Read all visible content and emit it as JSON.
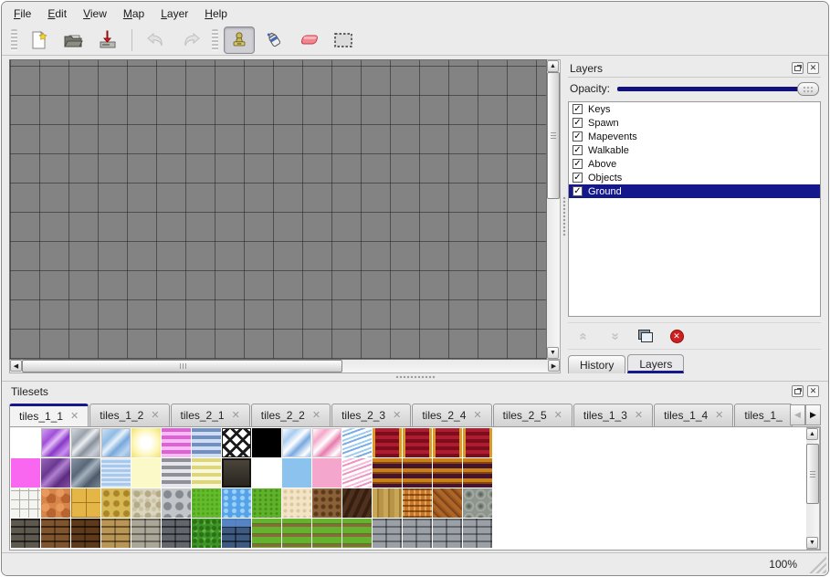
{
  "menubar": {
    "items": [
      "File",
      "Edit",
      "View",
      "Map",
      "Layer",
      "Help"
    ]
  },
  "toolbar": {
    "groups": [
      {
        "leading": "handle",
        "tools": [
          {
            "name": "new-map",
            "icon": "new-file-icon"
          },
          {
            "name": "open-map",
            "icon": "open-folder-icon"
          },
          {
            "name": "save-map",
            "icon": "save-icon"
          }
        ]
      },
      {
        "leading": "separator",
        "tools": [
          {
            "name": "undo",
            "icon": "undo-icon",
            "disabled": true
          },
          {
            "name": "redo",
            "icon": "redo-icon",
            "disabled": true
          }
        ]
      },
      {
        "leading": "handle",
        "tools": [
          {
            "name": "stamp-tool",
            "icon": "stamp-icon",
            "active": true
          },
          {
            "name": "fill-tool",
            "icon": "fill-icon"
          },
          {
            "name": "eraser-tool",
            "icon": "eraser-icon"
          },
          {
            "name": "selection-tool",
            "icon": "select-icon"
          }
        ]
      }
    ]
  },
  "layers_panel": {
    "title": "Layers",
    "opacity_label": "Opacity:",
    "opacity_percent": 100,
    "layers": [
      {
        "name": "Keys",
        "checked": true,
        "selected": false
      },
      {
        "name": "Spawn",
        "checked": true,
        "selected": false
      },
      {
        "name": "Mapevents",
        "checked": true,
        "selected": false
      },
      {
        "name": "Walkable",
        "checked": true,
        "selected": false
      },
      {
        "name": "Above",
        "checked": true,
        "selected": false
      },
      {
        "name": "Objects",
        "checked": true,
        "selected": false
      },
      {
        "name": "Ground",
        "checked": true,
        "selected": true
      }
    ],
    "action_icons": [
      "raise-layer-icon",
      "lower-layer-icon",
      "duplicate-layer-icon",
      "delete-layer-icon"
    ],
    "tabs": [
      {
        "label": "History",
        "active": false
      },
      {
        "label": "Layers",
        "active": true
      }
    ]
  },
  "tilesets_panel": {
    "title": "Tilesets",
    "tabs": [
      {
        "label": "tiles_1_1",
        "active": true,
        "truncated": false
      },
      {
        "label": "tiles_1_2",
        "active": false,
        "truncated": false
      },
      {
        "label": "tiles_2_1",
        "active": false,
        "truncated": false
      },
      {
        "label": "tiles_2_2",
        "active": false,
        "truncated": false
      },
      {
        "label": "tiles_2_3",
        "active": false,
        "truncated": false
      },
      {
        "label": "tiles_2_4",
        "active": false,
        "truncated": false
      },
      {
        "label": "tiles_2_5",
        "active": false,
        "truncated": false
      },
      {
        "label": "tiles_1_3",
        "active": false,
        "truncated": false
      },
      {
        "label": "tiles_1_4",
        "active": false,
        "truncated": false
      },
      {
        "label": "tiles_1_",
        "active": false,
        "truncated": true
      }
    ],
    "scroll_left_enabled": false,
    "scroll_right_enabled": true,
    "tiles": [
      [
        "blank",
        "crystal-purple",
        "crystal-silver",
        "crystal-blue",
        "glow-yellow",
        "stripes-magenta",
        "stripes-blue",
        "lattice",
        "black",
        "crystal-blue-light",
        "crystal-pink",
        "waves-blue",
        "carpet-red",
        "carpet-red",
        "carpet-red",
        "carpet-red"
      ],
      [
        "magenta",
        "crystal-purple-dark",
        "crystal-gray-dark",
        "water-ripple",
        "pale-yellow",
        "stripes-gray",
        "stripes-yellow",
        "plaque-dark",
        "blank",
        "plain-blue",
        "plain-pink",
        "waves-pink",
        "stripes-brown",
        "stripes-brown",
        "stripes-brown",
        "stripes-brown"
      ],
      [
        "stone-path-white",
        "cobble-orange",
        "tiles-gold",
        "stones-yellow",
        "pebbles-beige",
        "stones-gray",
        "grass-bright",
        "water-blue",
        "grass-green",
        "sand-cream",
        "dirt-brown",
        "wood-dark",
        "planks-vertical",
        "basket-weave",
        "herringbone",
        "logs-gray"
      ],
      [
        "wall-darkstone",
        "wall-brown",
        "wall-darkbrown",
        "wall-tanbrick",
        "wall-graystone",
        "wall-darkgray",
        "hedge-green",
        "wall-bluebrick",
        "farm-rows",
        "farm-rows",
        "farm-rows",
        "farm-rows",
        "wall-graybrick",
        "wall-graybrick",
        "wall-graybrick",
        "wall-graybrick"
      ]
    ]
  },
  "statusbar": {
    "zoom_level": "100%"
  },
  "colors": {
    "accent_navy": "#15188c",
    "canvas_gray": "#838383",
    "selection_bg": "#15188c"
  }
}
